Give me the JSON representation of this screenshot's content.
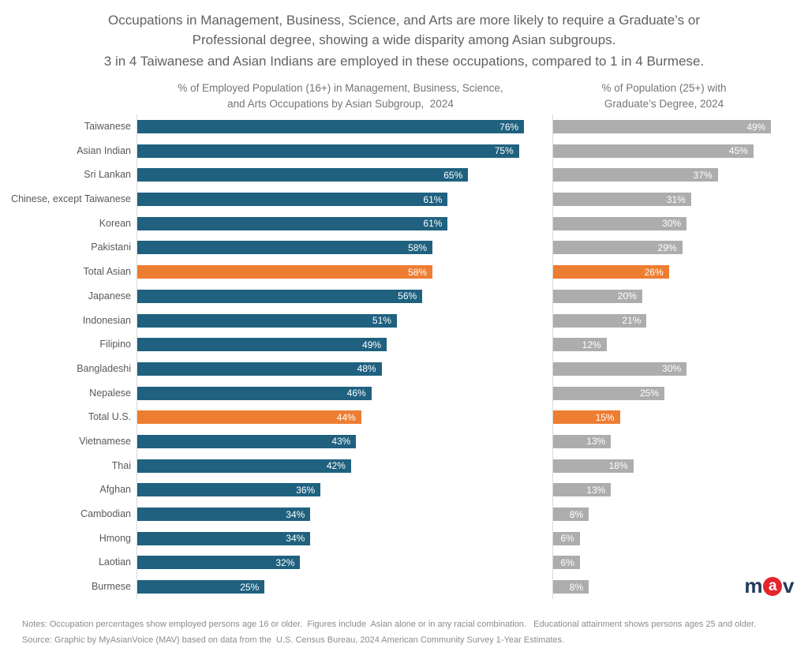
{
  "header": {
    "title": "Occupations in Management, Business, Science, and Arts are more likely to require a Graduate’s or\nProfessional degree, showing a wide disparity among Asian subgroups.",
    "subtitle": "3 in 4 Taiwanese and Asian Indians are employed in these occupations, compared to 1 in 4 Burmese."
  },
  "charts": {
    "left": {
      "title": "% of Employed Population (16+) in Management, Business, Science,\nand Arts Occupations by Asian Subgroup,  2024"
    },
    "right": {
      "title": "% of Population (25+) with\nGraduate’s Degree, 2024"
    }
  },
  "chart_data": {
    "type": "bar",
    "orientation": "horizontal",
    "categories": [
      "Taiwanese",
      "Asian Indian",
      "Sri Lankan",
      "Chinese, except Taiwanese",
      "Korean",
      "Pakistani",
      "Total Asian",
      "Japanese",
      "Indonesian",
      "Filipino",
      "Bangladeshi",
      "Nepalese",
      "Total U.S.",
      "Vietnamese",
      "Thai",
      "Afghan",
      "Cambodian",
      "Hmong",
      "Laotian",
      "Burmese"
    ],
    "series": [
      {
        "name": "% of Employed Population (16+) in Management, Business, Science, and Arts Occupations by Asian Subgroup, 2024",
        "values": [
          76,
          75,
          65,
          61,
          61,
          58,
          58,
          56,
          51,
          49,
          48,
          46,
          44,
          43,
          42,
          36,
          34,
          34,
          32,
          25
        ],
        "unit": "%",
        "bar_color": "#1f617f",
        "xlim": [
          0,
          80
        ]
      },
      {
        "name": "% of Population (25+) with Graduate's Degree, 2024",
        "values": [
          49,
          45,
          37,
          31,
          30,
          29,
          26,
          20,
          21,
          12,
          30,
          25,
          15,
          13,
          18,
          13,
          8,
          6,
          6,
          8
        ],
        "unit": "%",
        "bar_color": "#adadad",
        "xlim": [
          0,
          50
        ]
      }
    ],
    "highlight": {
      "categories": [
        "Total Asian",
        "Total U.S."
      ],
      "color": "#ed7d31"
    },
    "value_label_color": "#ffffff",
    "grid": false,
    "legend_position": "none"
  },
  "footer": {
    "notes": "Notes: Occupation percentages show employed persons age 16 or older.  Figures include  Asian alone or in any racial combination.   Educational attainment shows persons ages 25 and older.",
    "source": "Source: Graphic by MyAsianVoice (MAV) based on data from the  U.S. Census Bureau, 2024 American Community Survey 1-Year Estimates."
  },
  "logo": {
    "m": "m",
    "a": "a",
    "v": "v"
  }
}
